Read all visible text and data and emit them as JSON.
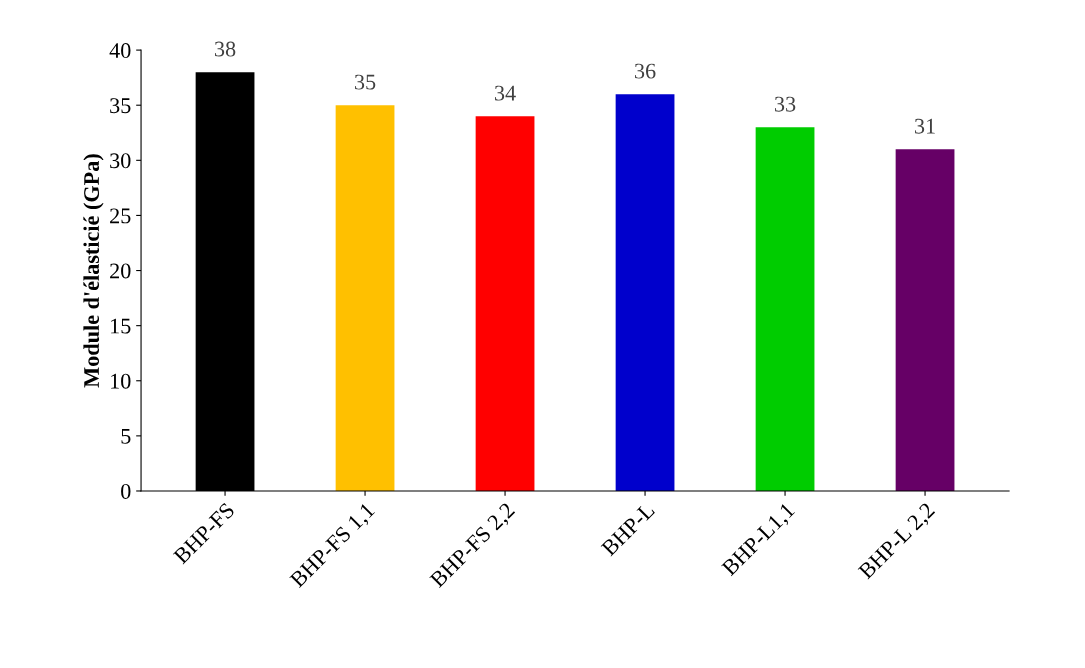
{
  "chart_data": {
    "type": "bar",
    "ylabel": "Module d'élasticié (GPa)",
    "categories": [
      "BHP-FS",
      "BHP-FS 1,1",
      "BHP-FS 2,2",
      "BHP-L",
      "BHP-L1,1",
      "BHP-L 2,2"
    ],
    "values": [
      38,
      35,
      34,
      36,
      33,
      31
    ],
    "colors": [
      "#000000",
      "#ffc000",
      "#ff0000",
      "#0000cc",
      "#00cc00",
      "#660066"
    ],
    "ylim": [
      0,
      40
    ],
    "yticks": [
      0,
      5,
      10,
      15,
      20,
      25,
      30,
      35,
      40
    ],
    "data_labels": true,
    "grid": false,
    "legend": false
  }
}
